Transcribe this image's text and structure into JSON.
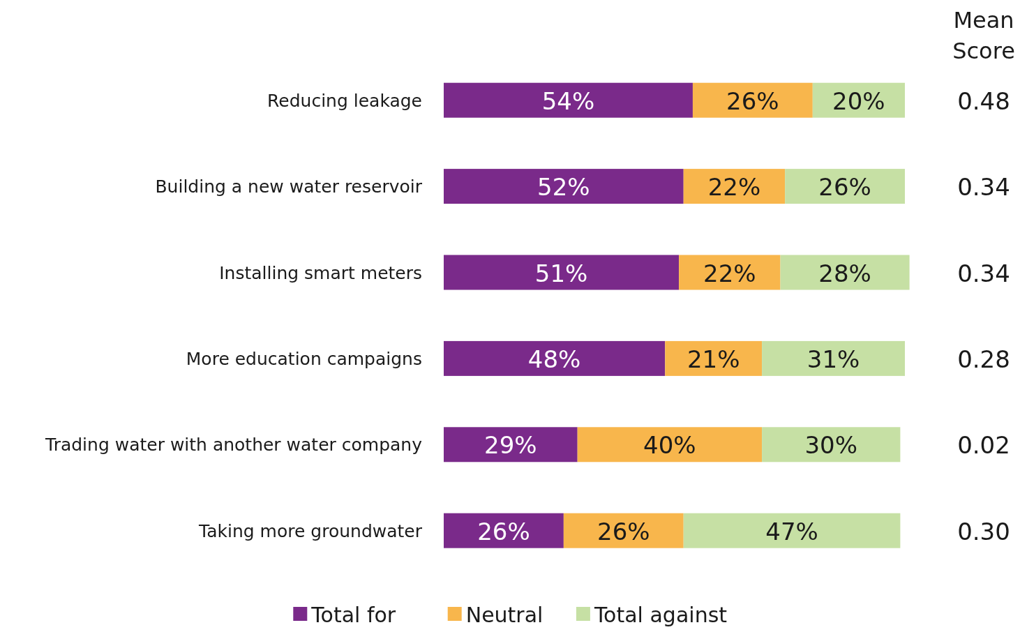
{
  "chart_data": {
    "type": "bar",
    "orientation": "horizontal",
    "stacked": true,
    "categories": [
      "Reducing leakage",
      "Building a new water reservoir",
      "Installing smart meters",
      "More education campaigns",
      "Trading water with another water company",
      "Taking more groundwater"
    ],
    "series": [
      {
        "name": "Total for",
        "color": "#7a2a8a",
        "values": [
          54,
          52,
          51,
          48,
          29,
          26
        ],
        "value_labels": [
          "54%",
          "52%",
          "51%",
          "48%",
          "29%",
          "26%"
        ]
      },
      {
        "name": "Neutral",
        "color": "#f8b64c",
        "values": [
          26,
          22,
          22,
          21,
          40,
          26
        ],
        "value_labels": [
          "26%",
          "22%",
          "22%",
          "21%",
          "40%",
          "26%"
        ]
      },
      {
        "name": "Total against",
        "color": "#c6e0a4",
        "values": [
          20,
          26,
          28,
          31,
          30,
          47
        ],
        "value_labels": [
          "20%",
          "26%",
          "28%",
          "31%",
          "30%",
          "47%"
        ]
      }
    ],
    "tick_labels": "y",
    "legend": "bottom",
    "annotations": [
      "Mean Score",
      "0.48",
      "0.34",
      "0.34",
      "0.28",
      "0.02",
      "0.30"
    ]
  }
}
